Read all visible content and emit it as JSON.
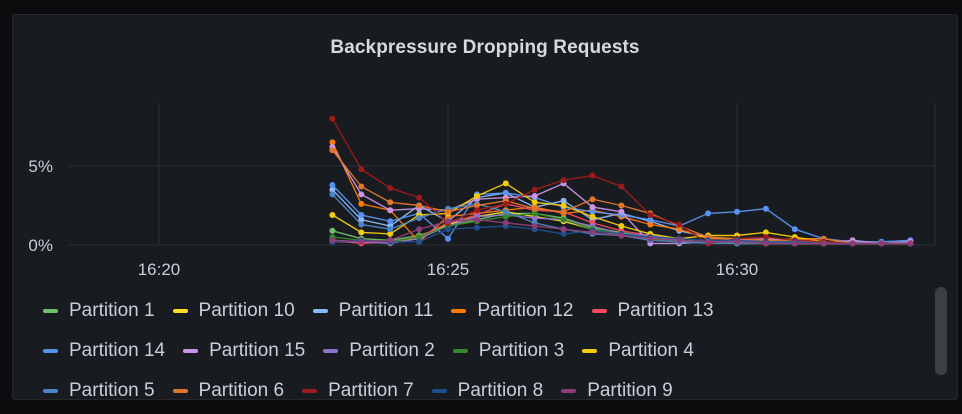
{
  "panel": {
    "title": "Backpressure Dropping Requests"
  },
  "chart_data": {
    "type": "line",
    "title": "Backpressure Dropping Requests",
    "xlabel": "",
    "ylabel": "",
    "x_ticks": [
      "16:20",
      "16:25",
      "16:30"
    ],
    "y_ticks": [
      "0%",
      "5%"
    ],
    "y_unit": "%",
    "ylim": [
      0,
      9
    ],
    "grid": true,
    "legend_position": "bottom",
    "x": [
      "16:23",
      "16:23:30",
      "16:24",
      "16:24:30",
      "16:25",
      "16:25:30",
      "16:26",
      "16:26:30",
      "16:27",
      "16:27:30",
      "16:28",
      "16:28:30",
      "16:29",
      "16:29:30",
      "16:30",
      "16:30:30",
      "16:31",
      "16:31:30",
      "16:32",
      "16:32:30",
      "16:33"
    ],
    "series": [
      {
        "name": "Partition 1",
        "color": "#73bf69",
        "values": [
          0.9,
          0.4,
          0.3,
          0.6,
          1.2,
          1.6,
          2.0,
          2.0,
          1.7,
          1.1,
          0.8,
          0.5,
          0.3,
          0.2,
          0.1,
          0.1,
          0.1,
          0.1,
          0.1,
          0.1,
          0.1
        ]
      },
      {
        "name": "Partition 10",
        "color": "#fade2a",
        "values": [
          0.3,
          0.2,
          0.2,
          0.4,
          1.3,
          1.8,
          2.1,
          1.8,
          1.5,
          1.0,
          0.6,
          0.4,
          0.3,
          0.2,
          0.2,
          0.1,
          0.1,
          0.1,
          0.1,
          0.1,
          0.1
        ]
      },
      {
        "name": "Partition 11",
        "color": "#8ab8ff",
        "values": [
          3.5,
          1.6,
          1.2,
          2.5,
          1.5,
          3.0,
          3.3,
          2.4,
          2.8,
          1.6,
          2.0,
          1.5,
          0.9,
          0.5,
          0.3,
          0.2,
          0.2,
          0.1,
          0.1,
          0.1,
          0.2
        ]
      },
      {
        "name": "Partition 12",
        "color": "#ff780a",
        "values": [
          6.5,
          2.6,
          2.2,
          0.2,
          1.8,
          2.0,
          2.2,
          2.4,
          2.0,
          2.2,
          1.8,
          1.3,
          1.0,
          0.4,
          0.4,
          0.3,
          0.4,
          0.4,
          0.1,
          0.1,
          0.1
        ]
      },
      {
        "name": "Partition 13",
        "color": "#f2495c",
        "values": [
          0.3,
          0.1,
          0.2,
          0.5,
          1.4,
          1.9,
          2.6,
          2.2,
          2.1,
          1.4,
          0.9,
          0.6,
          0.3,
          0.2,
          0.1,
          0.1,
          0.1,
          0.1,
          0.1,
          0.1,
          0.1
        ]
      },
      {
        "name": "Partition 14",
        "color": "#5794f2",
        "values": [
          3.8,
          1.9,
          1.5,
          2.0,
          0.4,
          3.2,
          3.3,
          3.0,
          2.4,
          2.1,
          1.9,
          1.6,
          1.2,
          2.0,
          2.1,
          2.3,
          1.0,
          0.4,
          0.2,
          0.2,
          0.3
        ]
      },
      {
        "name": "Partition 15",
        "color": "#ca95e5",
        "values": [
          6.2,
          3.2,
          2.2,
          2.3,
          2.2,
          2.9,
          3.0,
          3.1,
          3.9,
          2.4,
          2.1,
          0.1,
          0.1,
          0.2,
          0.3,
          0.4,
          0.3,
          0.1,
          0.3,
          0.1,
          0.2
        ]
      },
      {
        "name": "Partition 2",
        "color": "#8f71c8",
        "values": [
          0.2,
          0.2,
          0.1,
          0.4,
          1.2,
          1.8,
          1.9,
          1.7,
          1.6,
          1.2,
          0.7,
          0.6,
          0.3,
          0.2,
          0.2,
          0.1,
          0.1,
          0.1,
          0.1,
          0.1,
          0.1
        ]
      },
      {
        "name": "Partition 3",
        "color": "#37872d",
        "values": [
          0.5,
          0.3,
          0.2,
          0.5,
          1.2,
          1.5,
          1.8,
          2.0,
          1.6,
          1.0,
          0.7,
          0.4,
          0.2,
          0.2,
          0.1,
          0.1,
          0.1,
          0.1,
          0.1,
          0.1,
          0.1
        ]
      },
      {
        "name": "Partition 4",
        "color": "#f2cc0c",
        "values": [
          1.9,
          0.8,
          0.7,
          1.9,
          2.0,
          3.1,
          3.9,
          2.7,
          2.5,
          1.8,
          1.2,
          0.7,
          0.4,
          0.6,
          0.6,
          0.8,
          0.5,
          0.2,
          0.1,
          0.1,
          0.1
        ]
      },
      {
        "name": "Partition 5",
        "color": "#4b85c5",
        "values": [
          3.2,
          1.3,
          1.0,
          1.7,
          2.3,
          2.6,
          2.1,
          1.4,
          1.0,
          0.7,
          0.6,
          0.3,
          0.2,
          0.1,
          0.1,
          0.1,
          0.1,
          0.1,
          0.1,
          0.1,
          0.1
        ]
      },
      {
        "name": "Partition 6",
        "color": "#e0752d",
        "values": [
          6.0,
          3.7,
          2.7,
          2.5,
          2.1,
          2.5,
          2.8,
          2.3,
          2.1,
          2.9,
          2.5,
          2.0,
          1.2,
          0.5,
          0.4,
          0.3,
          0.3,
          0.4,
          0.1,
          0.1,
          0.1
        ]
      },
      {
        "name": "Partition 7",
        "color": "#9e1b1b",
        "values": [
          8.0,
          4.8,
          3.6,
          3.0,
          1.4,
          2.2,
          2.6,
          3.5,
          4.1,
          4.4,
          3.7,
          1.9,
          1.3,
          0.1,
          0.4,
          0.5,
          0.3,
          0.2,
          0.1,
          0.1,
          0.1
        ]
      },
      {
        "name": "Partition 8",
        "color": "#1f4f8f",
        "values": [
          0.2,
          0.3,
          0.2,
          0.2,
          1.0,
          1.1,
          1.2,
          1.0,
          0.7,
          0.9,
          0.7,
          0.5,
          0.4,
          0.3,
          0.3,
          0.2,
          0.2,
          0.1,
          0.1,
          0.1,
          0.1
        ]
      },
      {
        "name": "Partition 9",
        "color": "#8f3b78",
        "values": [
          0.3,
          0.2,
          0.3,
          1.0,
          1.5,
          1.6,
          1.4,
          1.2,
          1.0,
          0.8,
          0.6,
          0.4,
          0.3,
          0.2,
          0.2,
          0.1,
          0.1,
          0.1,
          0.1,
          0.1,
          0.1
        ]
      }
    ]
  }
}
